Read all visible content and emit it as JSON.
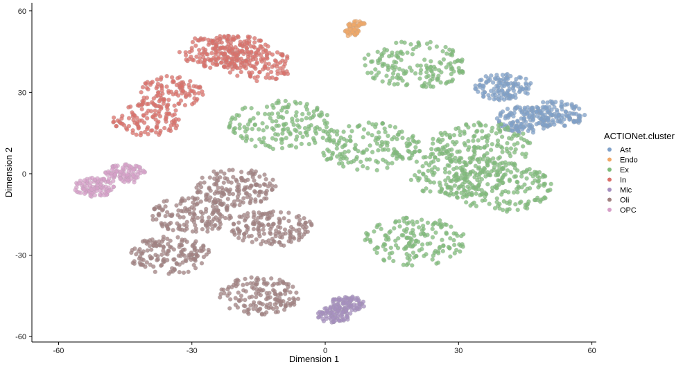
{
  "chart_data": {
    "type": "scatter",
    "xlabel": "Dimension 1",
    "ylabel": "Dimension 2",
    "xlim": [
      -66,
      61
    ],
    "ylim": [
      -62,
      63
    ],
    "x_ticks": [
      -60,
      -30,
      0,
      30,
      60
    ],
    "y_ticks": [
      -60,
      -30,
      0,
      30,
      60
    ],
    "x_tick_labels": [
      "-60",
      "-30",
      "0",
      "30",
      "60"
    ],
    "y_tick_labels": [
      "-60",
      "-30",
      "0",
      "30",
      "60"
    ],
    "grid": false,
    "legend": {
      "title": "ACTIONet.cluster",
      "position": "right"
    },
    "series": [
      {
        "name": "Ast",
        "color": "#7fa0c8",
        "centroids": [
          [
            45,
            20
          ],
          [
            40,
            32
          ],
          [
            52,
            22
          ]
        ]
      },
      {
        "name": "Endo",
        "color": "#f0a868",
        "centroids": [
          [
            7,
            55
          ],
          [
            6,
            52
          ]
        ]
      },
      {
        "name": "Ex",
        "color": "#7fbb7a",
        "centroids": [
          [
            10,
            10
          ],
          [
            30,
            0
          ],
          [
            20,
            -25
          ],
          [
            40,
            -5
          ],
          [
            -10,
            18
          ],
          [
            20,
            40
          ],
          [
            35,
            10
          ]
        ]
      },
      {
        "name": "In",
        "color": "#d9706a",
        "centroids": [
          [
            -20,
            45
          ],
          [
            -40,
            20
          ],
          [
            -15,
            40
          ],
          [
            -35,
            30
          ],
          [
            -25,
            45
          ]
        ]
      },
      {
        "name": "Mic",
        "color": "#a58fbf",
        "centroids": [
          [
            5,
            -48
          ],
          [
            2,
            -52
          ]
        ]
      },
      {
        "name": "Oli",
        "color": "#a08080",
        "centroids": [
          [
            -30,
            -15
          ],
          [
            -12,
            -20
          ],
          [
            -20,
            -5
          ],
          [
            -35,
            -30
          ],
          [
            -15,
            -45
          ]
        ]
      },
      {
        "name": "OPC",
        "color": "#d6a0c8",
        "centroids": [
          [
            -52,
            -5
          ],
          [
            -45,
            0
          ]
        ]
      }
    ]
  }
}
